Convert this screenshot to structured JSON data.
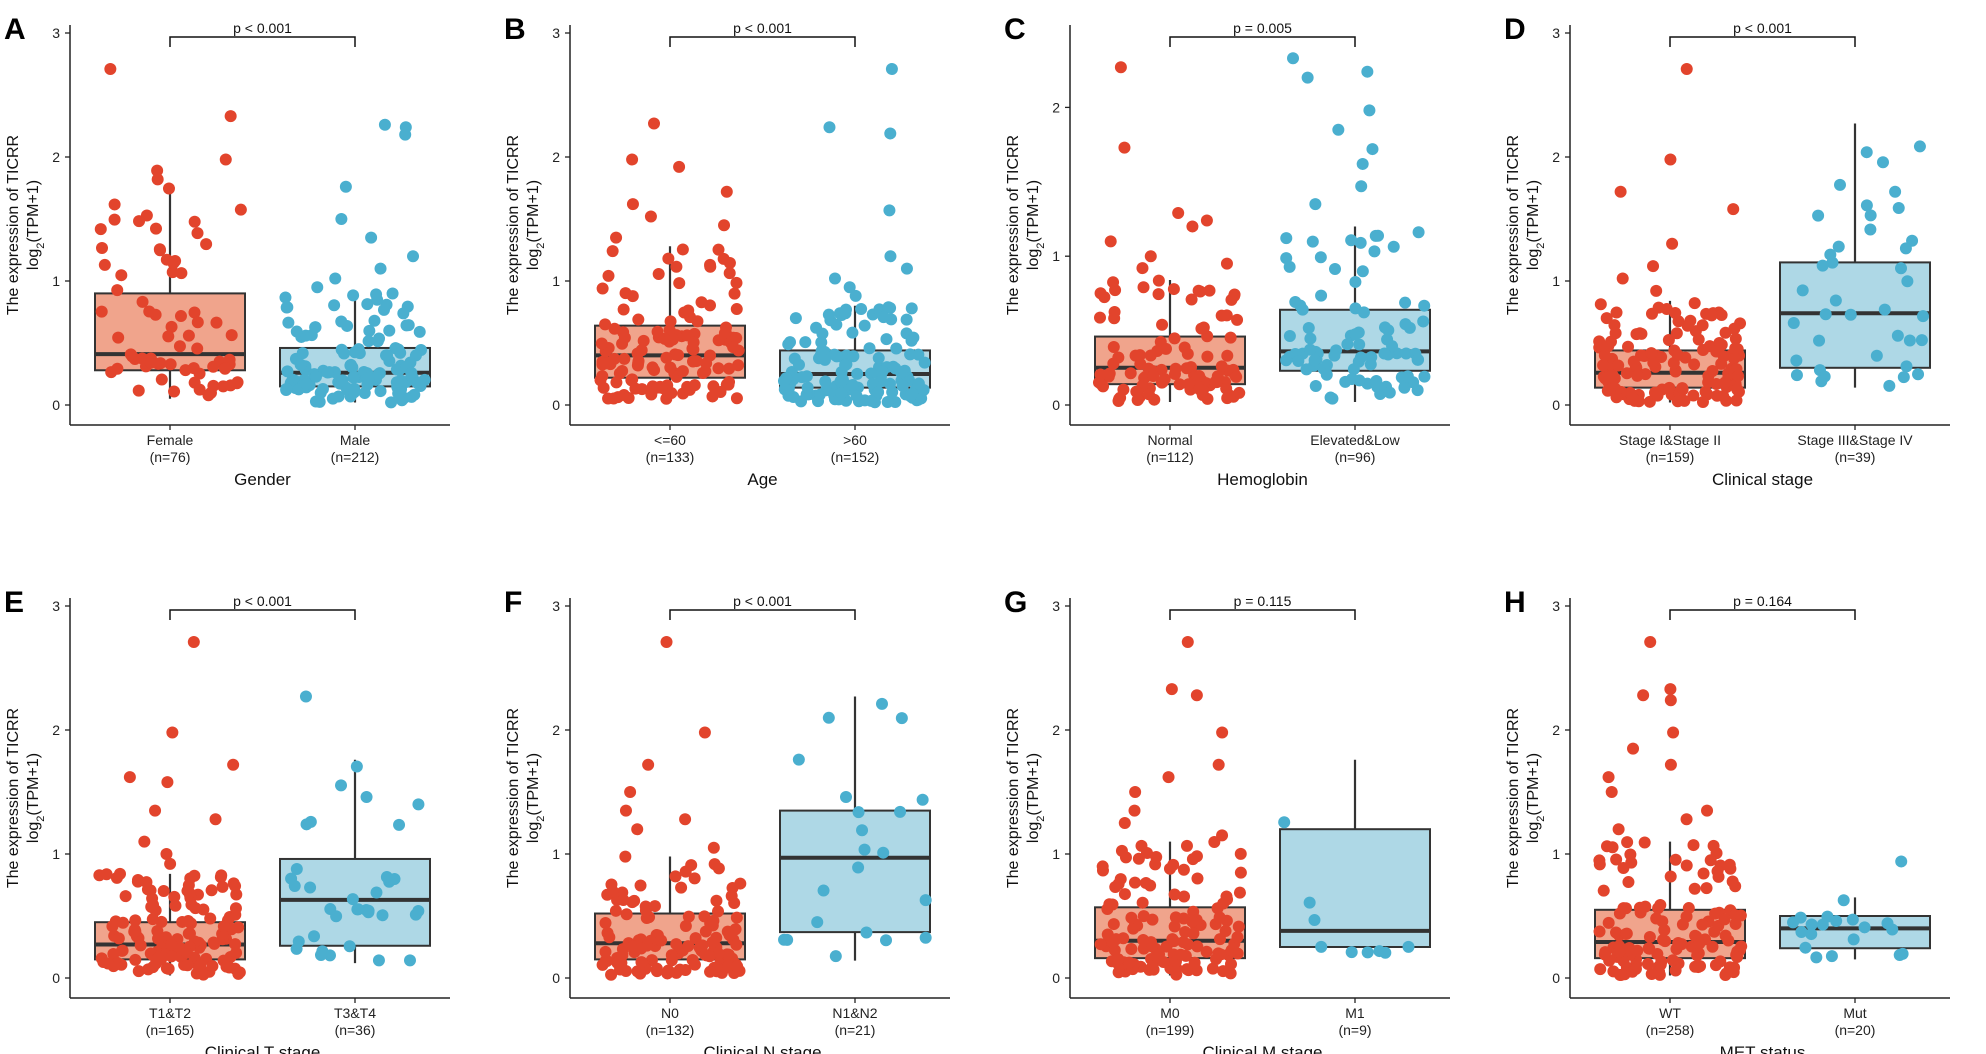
{
  "figure": {
    "ylabel_line1": "The expression of TICRR",
    "ylabel_line2_prefix": "log",
    "ylabel_line2_sub": "2",
    "ylabel_line2_suffix": "(TPM+1)",
    "colors": {
      "group1_fill": "#f0a48c",
      "group1_points": "#e2442c",
      "group2_fill": "#aed8e6",
      "group2_points": "#4aafcf",
      "box_line": "#333333"
    }
  },
  "chart_data": [
    {
      "type": "box",
      "panel": "A",
      "xlabel": "Gender",
      "ylim": [
        0,
        3
      ],
      "yticks": [
        0,
        1,
        2,
        3
      ],
      "pvalue": "p < 0.001",
      "groups": [
        {
          "name": "Female",
          "n": "(n=76)",
          "q1": 0.28,
          "median": 0.41,
          "q3": 0.9,
          "whisker_low": 0.05,
          "whisker_high": 1.75,
          "outliers": [
            1.82,
            1.89,
            1.98,
            2.33,
            2.71
          ],
          "count": 76
        },
        {
          "name": "Male",
          "n": "(n=212)",
          "q1": 0.15,
          "median": 0.26,
          "q3": 0.46,
          "whisker_low": 0.02,
          "whisker_high": 0.9,
          "outliers": [
            0.95,
            1.02,
            1.1,
            1.2,
            1.35,
            1.5,
            1.76,
            2.18,
            2.24,
            2.26
          ],
          "count": 212
        }
      ]
    },
    {
      "type": "box",
      "panel": "B",
      "xlabel": "Age",
      "ylim": [
        0,
        3
      ],
      "yticks": [
        0,
        1,
        2,
        3
      ],
      "pvalue": "p < 0.001",
      "groups": [
        {
          "name": "<=60",
          "n": "(n=133)",
          "q1": 0.22,
          "median": 0.4,
          "q3": 0.64,
          "whisker_low": 0.05,
          "whisker_high": 1.28,
          "outliers": [
            1.35,
            1.45,
            1.52,
            1.62,
            1.72,
            1.92,
            1.98,
            2.27
          ],
          "count": 133
        },
        {
          "name": ">60",
          "n": "(n=152)",
          "q1": 0.14,
          "median": 0.25,
          "q3": 0.44,
          "whisker_low": 0.02,
          "whisker_high": 0.8,
          "outliers": [
            0.88,
            0.95,
            1.02,
            1.1,
            1.2,
            1.57,
            2.19,
            2.24,
            2.71
          ],
          "count": 152
        }
      ]
    },
    {
      "type": "box",
      "panel": "C",
      "xlabel": "Hemoglobin",
      "ylim": [
        0,
        2.5
      ],
      "yticks": [
        0,
        1,
        2
      ],
      "pvalue": "p = 0.005",
      "groups": [
        {
          "name": "Normal",
          "n": "(n=112)",
          "q1": 0.14,
          "median": 0.25,
          "q3": 0.46,
          "whisker_low": 0.02,
          "whisker_high": 0.84,
          "outliers": [
            0.92,
            0.95,
            1.0,
            1.1,
            1.2,
            1.24,
            1.29,
            1.73,
            2.27
          ],
          "count": 112
        },
        {
          "name": "Elevated&Low",
          "n": "(n=96)",
          "q1": 0.23,
          "median": 0.36,
          "q3": 0.64,
          "whisker_low": 0.02,
          "whisker_high": 1.2,
          "outliers": [
            1.35,
            1.47,
            1.62,
            1.72,
            1.85,
            1.98,
            2.2,
            2.24,
            2.33
          ],
          "count": 96
        }
      ]
    },
    {
      "type": "box",
      "panel": "D",
      "xlabel": "Clinical stage",
      "ylim": [
        0,
        3
      ],
      "yticks": [
        0,
        1,
        2,
        3
      ],
      "pvalue": "p < 0.001",
      "groups": [
        {
          "name": "Stage I&Stage II",
          "n": "(n=159)",
          "q1": 0.14,
          "median": 0.26,
          "q3": 0.44,
          "whisker_low": 0.02,
          "whisker_high": 0.84,
          "outliers": [
            0.92,
            1.02,
            1.12,
            1.3,
            1.58,
            1.72,
            1.98,
            2.71
          ],
          "count": 159
        },
        {
          "name": "Stage III&Stage IV",
          "n": "(n=39)",
          "q1": 0.3,
          "median": 0.74,
          "q3": 1.15,
          "whisker_low": 0.14,
          "whisker_high": 2.27,
          "outliers": [],
          "count": 39
        }
      ]
    },
    {
      "type": "box",
      "panel": "E",
      "xlabel": "Clinical T stage",
      "ylim": [
        0,
        3
      ],
      "yticks": [
        0,
        1,
        2,
        3
      ],
      "pvalue": "p < 0.001",
      "groups": [
        {
          "name": "T1&T2",
          "n": "(n=165)",
          "q1": 0.15,
          "median": 0.27,
          "q3": 0.45,
          "whisker_low": 0.02,
          "whisker_high": 0.84,
          "outliers": [
            0.92,
            1.0,
            1.1,
            1.28,
            1.35,
            1.58,
            1.62,
            1.72,
            1.98,
            2.71
          ],
          "count": 165
        },
        {
          "name": "T3&T4",
          "n": "(n=36)",
          "q1": 0.26,
          "median": 0.63,
          "q3": 0.96,
          "whisker_low": 0.12,
          "whisker_high": 1.76,
          "outliers": [
            2.27
          ],
          "count": 36
        }
      ]
    },
    {
      "type": "box",
      "panel": "F",
      "xlabel": "Clinical N stage",
      "ylim": [
        0,
        3
      ],
      "yticks": [
        0,
        1,
        2,
        3
      ],
      "pvalue": "p < 0.001",
      "groups": [
        {
          "name": "N0",
          "n": "(n=132)",
          "q1": 0.15,
          "median": 0.28,
          "q3": 0.52,
          "whisker_low": 0.02,
          "whisker_high": 0.98,
          "outliers": [
            1.05,
            1.2,
            1.28,
            1.35,
            1.5,
            1.72,
            1.98,
            2.71
          ],
          "count": 132
        },
        {
          "name": "N1&N2",
          "n": "(n=21)",
          "q1": 0.37,
          "median": 0.97,
          "q3": 1.35,
          "whisker_low": 0.14,
          "whisker_high": 2.27,
          "outliers": [],
          "count": 21
        }
      ]
    },
    {
      "type": "box",
      "panel": "G",
      "xlabel": "Clinical M stage",
      "ylim": [
        0,
        3
      ],
      "yticks": [
        0,
        1,
        2,
        3
      ],
      "pvalue": "p = 0.115",
      "groups": [
        {
          "name": "M0",
          "n": "(n=199)",
          "q1": 0.16,
          "median": 0.3,
          "q3": 0.57,
          "whisker_low": 0.02,
          "whisker_high": 1.1,
          "outliers": [
            1.15,
            1.25,
            1.35,
            1.5,
            1.62,
            1.72,
            1.98,
            2.28,
            2.33,
            2.71
          ],
          "count": 199
        },
        {
          "name": "M1",
          "n": "(n=9)",
          "q1": 0.25,
          "median": 0.38,
          "q3": 1.2,
          "whisker_low": 0.2,
          "whisker_high": 1.76,
          "outliers": [],
          "count": 9
        }
      ]
    },
    {
      "type": "box",
      "panel": "H",
      "xlabel": "MET status",
      "ylim": [
        0,
        3
      ],
      "yticks": [
        0,
        1,
        2,
        3
      ],
      "pvalue": "p = 0.164",
      "groups": [
        {
          "name": "WT",
          "n": "(n=258)",
          "q1": 0.16,
          "median": 0.29,
          "q3": 0.55,
          "whisker_low": 0.02,
          "whisker_high": 1.1,
          "outliers": [
            1.2,
            1.28,
            1.35,
            1.5,
            1.62,
            1.72,
            1.85,
            1.98,
            2.24,
            2.28,
            2.33,
            2.71
          ],
          "count": 258
        },
        {
          "name": "Mut",
          "n": "(n=20)",
          "q1": 0.24,
          "median": 0.4,
          "q3": 0.5,
          "whisker_low": 0.15,
          "whisker_high": 0.65,
          "outliers": [
            0.94
          ],
          "count": 20
        }
      ]
    }
  ]
}
